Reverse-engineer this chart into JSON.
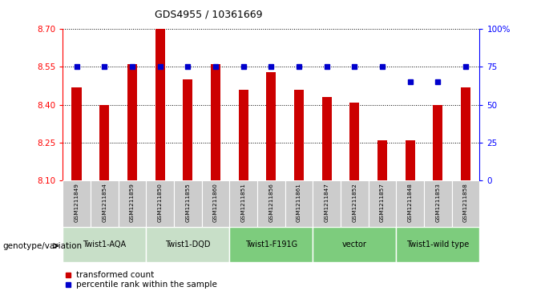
{
  "title": "GDS4955 / 10361669",
  "samples": [
    "GSM1211849",
    "GSM1211854",
    "GSM1211859",
    "GSM1211850",
    "GSM1211855",
    "GSM1211860",
    "GSM1211851",
    "GSM1211856",
    "GSM1211861",
    "GSM1211847",
    "GSM1211852",
    "GSM1211857",
    "GSM1211848",
    "GSM1211853",
    "GSM1211858"
  ],
  "bar_values": [
    8.47,
    8.4,
    8.56,
    8.7,
    8.5,
    8.56,
    8.46,
    8.53,
    8.46,
    8.43,
    8.41,
    8.26,
    8.26,
    8.4,
    8.47
  ],
  "percentile_values": [
    75,
    75,
    75,
    75,
    75,
    75,
    75,
    75,
    75,
    75,
    75,
    75,
    65,
    65,
    75
  ],
  "y_min": 8.1,
  "y_max": 8.7,
  "y_ticks": [
    8.1,
    8.25,
    8.4,
    8.55,
    8.7
  ],
  "right_y_ticks": [
    0,
    25,
    50,
    75,
    100
  ],
  "right_y_labels": [
    "0",
    "25",
    "50",
    "75",
    "100%"
  ],
  "groups": [
    {
      "label": "Twist1-AQA",
      "start": 0,
      "end": 3,
      "color": "#c8dfc8"
    },
    {
      "label": "Twist1-DQD",
      "start": 3,
      "end": 6,
      "color": "#c8dfc8"
    },
    {
      "label": "Twist1-F191G",
      "start": 6,
      "end": 9,
      "color": "#7dcc7d"
    },
    {
      "label": "vector",
      "start": 9,
      "end": 12,
      "color": "#7dcc7d"
    },
    {
      "label": "Twist1-wild type",
      "start": 12,
      "end": 15,
      "color": "#7dcc7d"
    }
  ],
  "bar_color": "#cc0000",
  "percentile_color": "#0000cc",
  "sample_bg_color": "#cccccc",
  "legend_bar_label": "transformed count",
  "legend_pct_label": "percentile rank within the sample",
  "xlabel_label": "genotype/variation"
}
